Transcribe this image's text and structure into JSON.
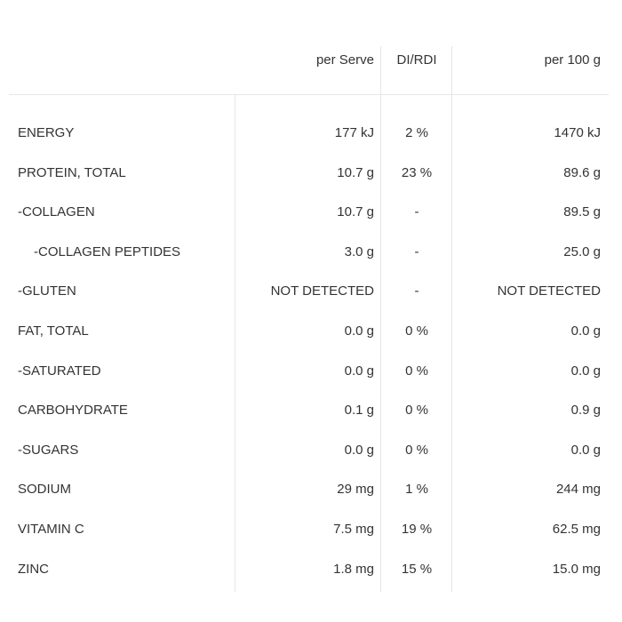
{
  "headers": {
    "per_serve": "per Serve",
    "di_rdi": "DI/RDI",
    "per_100g": "per 100 g"
  },
  "rows": [
    {
      "label": "ENERGY",
      "per_serve": "177 kJ",
      "di": "2 %",
      "per_100g": "1470 kJ",
      "indent": false
    },
    {
      "label": "PROTEIN, TOTAL",
      "per_serve": "10.7 g",
      "di": "23 %",
      "per_100g": "89.6 g",
      "indent": false
    },
    {
      "label": "-COLLAGEN",
      "per_serve": "10.7 g",
      "di": "-",
      "per_100g": "89.5 g",
      "indent": false
    },
    {
      "label": "-COLLAGEN PEPTIDES",
      "per_serve": "3.0 g",
      "di": "-",
      "per_100g": "25.0 g",
      "indent": true
    },
    {
      "label": "-GLUTEN",
      "per_serve": "NOT DETECTED",
      "di": "-",
      "per_100g": "NOT DETECTED",
      "indent": false
    },
    {
      "label": "FAT, TOTAL",
      "per_serve": "0.0 g",
      "di": "0 %",
      "per_100g": "0.0 g",
      "indent": false
    },
    {
      "label": "-SATURATED",
      "per_serve": "0.0 g",
      "di": "0 %",
      "per_100g": "0.0 g",
      "indent": false
    },
    {
      "label": "CARBOHYDRATE",
      "per_serve": "0.1 g",
      "di": "0 %",
      "per_100g": "0.9 g",
      "indent": false
    },
    {
      "label": "-SUGARS",
      "per_serve": "0.0 g",
      "di": "0 %",
      "per_100g": "0.0 g",
      "indent": false
    },
    {
      "label": "SODIUM",
      "per_serve": "29 mg",
      "di": "1 %",
      "per_100g": "244 mg",
      "indent": false
    },
    {
      "label": "VITAMIN C",
      "per_serve": "7.5 mg",
      "di": "19 %",
      "per_100g": "62.5 mg",
      "indent": false
    },
    {
      "label": "ZINC",
      "per_serve": "1.8 mg",
      "di": "15 %",
      "per_100g": "15.0 mg",
      "indent": false
    }
  ]
}
